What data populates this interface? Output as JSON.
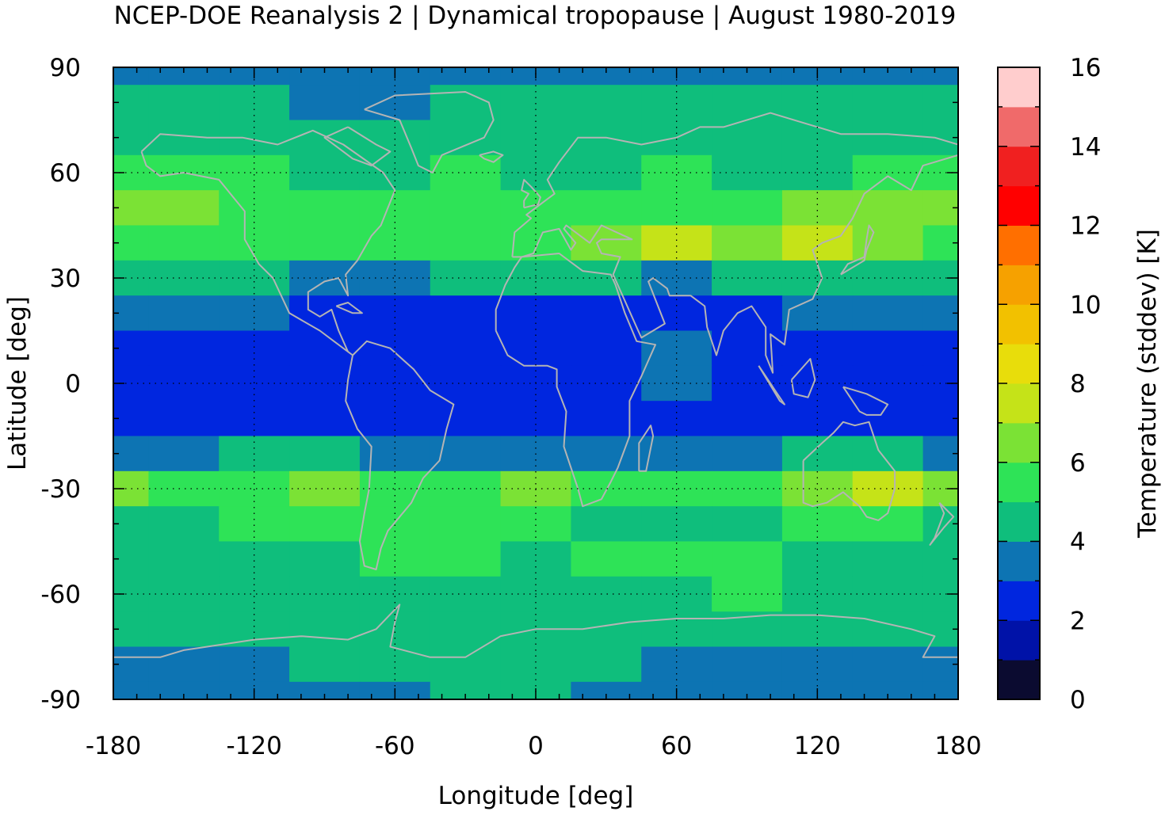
{
  "title": "NCEP-DOE Reanalysis 2 | Dynamical tropopause | August 1980-2019",
  "x_axis": {
    "label": "Longitude [deg]",
    "range": [
      -180,
      180
    ],
    "ticks": [
      -180,
      -120,
      -60,
      0,
      60,
      120,
      180
    ],
    "tick_labels": [
      "-180",
      "-120",
      "-60",
      "0",
      "60",
      "120",
      "180"
    ]
  },
  "y_axis": {
    "label": "Latitude [deg]",
    "range": [
      -90,
      90
    ],
    "ticks": [
      -90,
      -60,
      -30,
      0,
      30,
      60,
      90
    ],
    "tick_labels": [
      "-90",
      "-60",
      "-30",
      "0",
      "30",
      "60",
      "90"
    ]
  },
  "colorbar": {
    "label": "Temperature (stddev) [K]",
    "range": [
      0,
      16
    ],
    "tick_labels": [
      "0",
      "2",
      "4",
      "6",
      "8",
      "10",
      "12",
      "14",
      "16"
    ],
    "colors": [
      "#0b0b30",
      "#0012a8",
      "#0026df",
      "#0d74b3",
      "#0fbe7c",
      "#2ee357",
      "#7be235",
      "#c5e318",
      "#e8dd0b",
      "#f2c100",
      "#f6a100",
      "#ff6f00",
      "#ff0000",
      "#f02020",
      "#f06a6a",
      "#ffcdcd"
    ]
  },
  "chart_data": {
    "type": "heatmap",
    "title": "NCEP-DOE Reanalysis 2 | Dynamical tropopause | August 1980-2019",
    "xlabel": "Longitude [deg]",
    "ylabel": "Latitude [deg]",
    "xlim": [
      -180,
      180
    ],
    "ylim": [
      -90,
      90
    ],
    "colorbar_label": "Temperature (stddev) [K]",
    "colorbar_range": [
      0,
      16
    ],
    "colorbar_step": 1,
    "longitudes": [
      -180,
      -150,
      -120,
      -90,
      -60,
      -30,
      0,
      30,
      60,
      90,
      120,
      150,
      180
    ],
    "latitudes": [
      90,
      80,
      70,
      60,
      50,
      40,
      30,
      20,
      10,
      0,
      -10,
      -20,
      -30,
      -40,
      -50,
      -60,
      -70,
      -80,
      -90
    ],
    "values": [
      [
        3.5,
        3.5,
        3.5,
        3.5,
        3.5,
        3.5,
        3.5,
        3.5,
        3.5,
        3.5,
        3.5,
        3.5,
        3.5
      ],
      [
        4.5,
        4.5,
        4.5,
        3.5,
        3.5,
        4.5,
        4.5,
        4.5,
        4.5,
        4.5,
        4.5,
        4.5,
        4.5
      ],
      [
        4.5,
        4.5,
        4.5,
        4.5,
        4.5,
        4.5,
        4.5,
        4.5,
        4.5,
        4.5,
        4.5,
        4.5,
        4.5
      ],
      [
        5.5,
        5.5,
        5.5,
        4.5,
        4.5,
        5.5,
        4.5,
        4.5,
        5.5,
        4.5,
        4.5,
        5.5,
        5.5
      ],
      [
        6.5,
        6.5,
        5.5,
        5.5,
        5.5,
        5.5,
        5.5,
        5.5,
        5.5,
        5.5,
        6.5,
        6.5,
        6.5
      ],
      [
        5.5,
        5.5,
        5.5,
        5.5,
        5.5,
        5.5,
        5.5,
        6.5,
        7.5,
        6.5,
        7.5,
        6.5,
        5.5
      ],
      [
        4.5,
        4.5,
        4.5,
        3.5,
        3.5,
        4.5,
        4.5,
        4.5,
        3.5,
        4.5,
        4.5,
        4.5,
        4.5
      ],
      [
        3.5,
        3.5,
        3.5,
        2.5,
        2.5,
        2.5,
        2.5,
        2.5,
        2.5,
        2.5,
        3.5,
        3.5,
        3.5
      ],
      [
        2.5,
        2.5,
        2.5,
        2.5,
        2.5,
        2.5,
        2.5,
        2.5,
        3.5,
        2.5,
        2.5,
        2.5,
        2.5
      ],
      [
        2.5,
        2.5,
        2.5,
        2.5,
        2.5,
        2.5,
        2.5,
        2.5,
        3.5,
        2.5,
        2.5,
        2.5,
        2.5
      ],
      [
        2.5,
        2.5,
        2.5,
        2.5,
        2.5,
        2.5,
        2.5,
        2.5,
        2.5,
        2.5,
        2.5,
        2.5,
        2.5
      ],
      [
        3.5,
        3.5,
        4.5,
        4.5,
        3.5,
        3.5,
        3.5,
        3.5,
        3.5,
        3.5,
        4.5,
        4.5,
        3.5
      ],
      [
        6.5,
        5.5,
        5.5,
        6.5,
        5.5,
        5.5,
        6.5,
        5.5,
        5.5,
        5.5,
        6.5,
        7.5,
        6.5
      ],
      [
        4.5,
        4.5,
        5.5,
        5.5,
        5.5,
        5.5,
        5.5,
        4.5,
        4.5,
        4.5,
        5.5,
        5.5,
        4.5
      ],
      [
        4.5,
        4.5,
        4.5,
        4.5,
        5.5,
        5.5,
        4.5,
        5.5,
        5.5,
        5.5,
        4.5,
        4.5,
        4.5
      ],
      [
        4.5,
        4.5,
        4.5,
        4.5,
        4.5,
        4.5,
        4.5,
        4.5,
        4.5,
        5.5,
        4.5,
        4.5,
        4.5
      ],
      [
        4.5,
        4.5,
        4.5,
        4.5,
        4.5,
        4.5,
        4.5,
        4.5,
        4.5,
        4.5,
        4.5,
        4.5,
        4.5
      ],
      [
        3.5,
        3.5,
        3.5,
        4.5,
        4.5,
        4.5,
        4.5,
        4.5,
        3.5,
        3.5,
        3.5,
        3.5,
        3.5
      ],
      [
        3.5,
        3.5,
        3.5,
        3.5,
        3.5,
        4.5,
        4.5,
        3.5,
        3.5,
        3.5,
        3.5,
        3.5,
        3.5
      ]
    ],
    "coastlines": "world-coastlines-gray",
    "grid": "dotted"
  }
}
